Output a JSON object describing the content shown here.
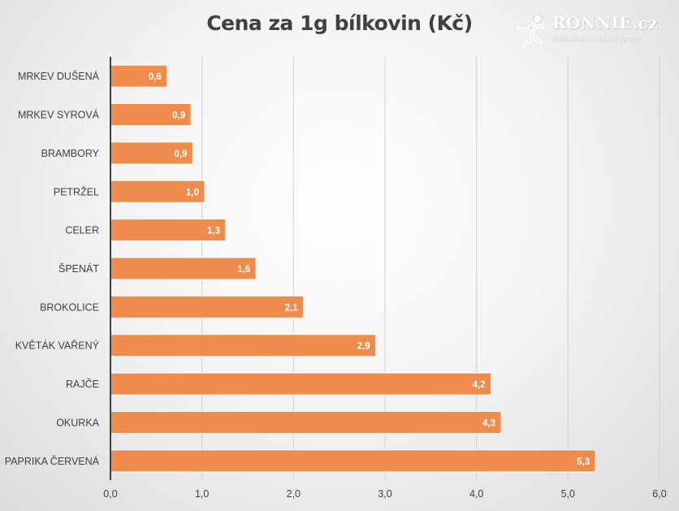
{
  "title": "Cena za 1g bílkovin (Kč)",
  "logo": {
    "brand": "RONNIE.cz",
    "tagline": "kulturistika a silové sporty",
    "icon": "runner-figure-icon"
  },
  "colors": {
    "bar": "#ed8c4c",
    "bar_border": "#ffffff",
    "gridline": "#d0d0d0",
    "axis": "#404040",
    "text": "#404040"
  },
  "chart_data": {
    "type": "bar",
    "orientation": "horizontal",
    "title": "Cena za 1g bílkovin (Kč)",
    "categories": [
      "MRKEV DUŠENÁ",
      "MRKEV SYROVÁ",
      "BRAMBORY",
      "PETRŽEL",
      "CELER",
      "ŠPENÁT",
      "BROKOLICE",
      "KVĚTÁK VAŘENÝ",
      "RAJČE",
      "OKURKA",
      "PAPRIKA ČERVENÁ"
    ],
    "values": [
      0.62,
      0.88,
      0.9,
      1.03,
      1.26,
      1.59,
      2.11,
      2.9,
      4.16,
      4.27,
      5.3
    ],
    "data_labels": [
      "0,6",
      "0,9",
      "0,9",
      "1,0",
      "1,3",
      "1,6",
      "2,1",
      "2,9",
      "4,2",
      "4,3",
      "5,3"
    ],
    "xlim": [
      0,
      6
    ],
    "ticks": [
      0,
      1,
      2,
      3,
      4,
      5,
      6
    ],
    "tick_labels": [
      "0,0",
      "1,0",
      "2,0",
      "3,0",
      "4,0",
      "5,0",
      "6,0"
    ],
    "grid": true,
    "legend": "none"
  }
}
